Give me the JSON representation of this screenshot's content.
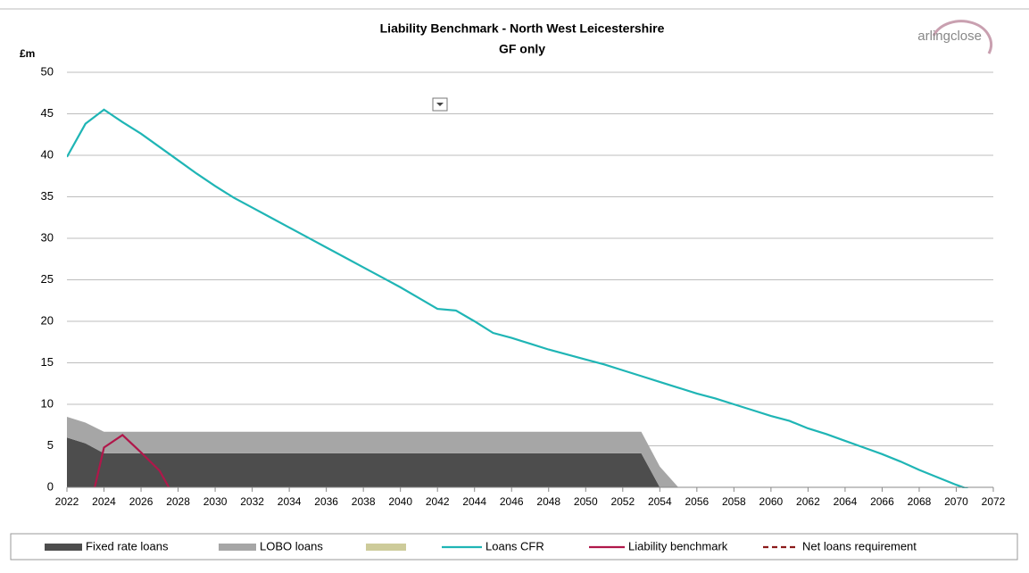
{
  "chart_data": {
    "type": "area",
    "title": "Liability Benchmark - North West Leicestershire",
    "subtitle": "GF only",
    "y_label": "£m",
    "logo": "arlingclose",
    "x": [
      2022,
      2023,
      2024,
      2025,
      2026,
      2027,
      2028,
      2029,
      2030,
      2031,
      2032,
      2033,
      2034,
      2035,
      2036,
      2037,
      2038,
      2039,
      2040,
      2041,
      2042,
      2043,
      2044,
      2045,
      2046,
      2047,
      2048,
      2049,
      2050,
      2051,
      2052,
      2053,
      2054,
      2055,
      2056,
      2057,
      2058,
      2059,
      2060,
      2061,
      2062,
      2063,
      2064,
      2065,
      2066,
      2067,
      2068,
      2069,
      2070,
      2071,
      2072
    ],
    "xlim": [
      2022,
      2072
    ],
    "xticks": [
      2022,
      2024,
      2026,
      2028,
      2030,
      2032,
      2034,
      2036,
      2038,
      2040,
      2042,
      2044,
      2046,
      2048,
      2050,
      2052,
      2054,
      2056,
      2058,
      2060,
      2062,
      2064,
      2066,
      2068,
      2070,
      2072
    ],
    "ylim": [
      0,
      50
    ],
    "yticks": [
      0,
      5,
      10,
      15,
      20,
      25,
      30,
      35,
      40,
      45,
      50
    ],
    "grid": true,
    "legend": "bottom",
    "series": [
      {
        "name": "Fixed rate loans",
        "type": "area",
        "color": "#4d4d4d",
        "values": [
          6.0,
          5.3,
          4.1,
          4.1,
          4.1,
          4.1,
          4.1,
          4.1,
          4.1,
          4.1,
          4.1,
          4.1,
          4.1,
          4.1,
          4.1,
          4.1,
          4.1,
          4.1,
          4.1,
          4.1,
          4.1,
          4.1,
          4.1,
          4.1,
          4.1,
          4.1,
          4.1,
          4.1,
          4.1,
          4.1,
          4.1,
          4.1,
          0,
          0,
          0,
          0,
          0,
          0,
          0,
          0,
          0,
          0,
          0,
          0,
          0,
          0,
          0,
          0,
          0,
          0,
          0
        ]
      },
      {
        "name": "LOBO loans",
        "type": "area",
        "color": "#a6a6a6",
        "values": [
          2.5,
          2.5,
          2.6,
          2.6,
          2.6,
          2.6,
          2.6,
          2.6,
          2.6,
          2.6,
          2.6,
          2.6,
          2.6,
          2.6,
          2.6,
          2.6,
          2.6,
          2.6,
          2.6,
          2.6,
          2.6,
          2.6,
          2.6,
          2.6,
          2.6,
          2.6,
          2.6,
          2.6,
          2.6,
          2.6,
          2.6,
          2.6,
          2.5,
          0,
          0,
          0,
          0,
          0,
          0,
          0,
          0,
          0,
          0,
          0,
          0,
          0,
          0,
          0,
          0,
          0,
          0
        ]
      },
      {
        "type": "area",
        "color": "#cdcb9a",
        "x": [],
        "values": []
      },
      {
        "name": "Loans CFR",
        "type": "line",
        "color": "#1fb5b5",
        "values": [
          39.8,
          43.8,
          45.5,
          44.0,
          42.6,
          41.0,
          39.4,
          37.8,
          36.3,
          34.9,
          33.7,
          32.5,
          31.3,
          30.1,
          28.9,
          27.7,
          26.5,
          25.3,
          24.1,
          22.8,
          21.5,
          21.3,
          20.0,
          18.6,
          18.0,
          17.3,
          16.6,
          16.0,
          15.4,
          14.8,
          14.1,
          13.4,
          12.7,
          12.0,
          11.3,
          10.7,
          10.0,
          9.3,
          8.6,
          8.0,
          7.1,
          6.4,
          5.6,
          4.8,
          4.0,
          3.1,
          2.1,
          1.2,
          0.3,
          -0.5,
          null
        ]
      },
      {
        "name": "Liability benchmark",
        "type": "line",
        "color": "#b0174a",
        "x": [
          2023.5,
          2024,
          2025,
          2026,
          2027,
          2027.5
        ],
        "values": [
          0,
          4.8,
          6.3,
          4.2,
          2.0,
          0
        ]
      },
      {
        "name": "Net loans requirement",
        "type": "line",
        "dash": true,
        "color": "#8b1a1a",
        "x": [],
        "values": []
      }
    ]
  }
}
